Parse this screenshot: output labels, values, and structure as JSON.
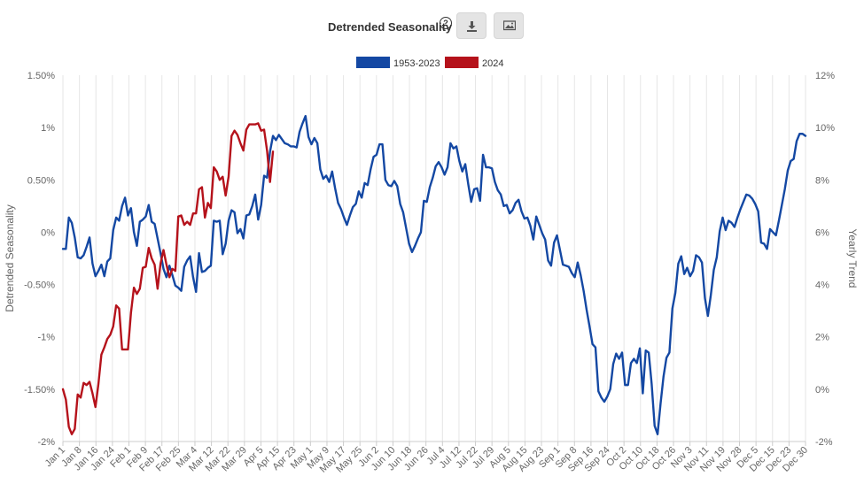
{
  "header": {
    "title": "Detrended Seasonality",
    "help_symbol": "?",
    "download_icon": "download-icon",
    "image_icon": "image-icon"
  },
  "chart_data": {
    "type": "line",
    "title": "Detrended Seasonality",
    "ylabel": "Detrended Seasonality",
    "y2label": "Yearly Trend",
    "ylim": [
      -2,
      1.5
    ],
    "y2lim": [
      -2,
      12
    ],
    "yticks": [
      "1.50%",
      "1%",
      "0.50%",
      "0%",
      "-0.50%",
      "-1%",
      "-1.50%",
      "-2%"
    ],
    "y2ticks": [
      "12%",
      "10%",
      "8%",
      "6%",
      "4%",
      "2%",
      "0%",
      "-2%"
    ],
    "categories": [
      "Jan 1",
      "Jan 8",
      "Jan 16",
      "Jan 24",
      "Feb 1",
      "Feb 9",
      "Feb 17",
      "Feb 25",
      "Mar 4",
      "Mar 12",
      "Mar 22",
      "Mar 29",
      "Apr 5",
      "Apr 15",
      "Apr 23",
      "May 1",
      "May 9",
      "May 17",
      "May 25",
      "Jun 2",
      "Jun 10",
      "Jun 18",
      "Jun 26",
      "Jul 4",
      "Jul 12",
      "Jul 22",
      "Jul 29",
      "Aug 5",
      "Aug 15",
      "Aug 23",
      "Sep 1",
      "Sep 8",
      "Sep 16",
      "Sep 24",
      "Oct 2",
      "Oct 10",
      "Oct 18",
      "Oct 26",
      "Nov 3",
      "Nov 11",
      "Nov 19",
      "Nov 28",
      "Dec 5",
      "Dec 15",
      "Dec 23",
      "Dec 30"
    ],
    "legend": {
      "position": "top-center"
    },
    "series": [
      {
        "name": "1953-2023",
        "color": "#1448a3",
        "x": [
          0,
          1,
          2,
          3,
          4,
          5,
          6,
          7,
          8,
          9,
          10,
          11,
          12,
          13,
          14,
          15,
          16,
          17,
          18,
          19,
          20,
          21,
          22,
          23,
          24,
          25,
          26,
          27,
          28,
          29,
          30,
          31,
          32,
          33,
          34,
          35,
          36,
          37,
          38,
          39,
          40,
          41,
          42,
          43,
          44,
          45,
          46,
          47,
          48,
          49,
          50,
          51,
          52,
          53,
          54,
          55,
          56,
          57,
          58,
          59,
          60,
          61,
          62,
          63,
          64,
          65,
          66,
          67,
          68,
          69,
          70,
          71,
          72,
          73,
          74,
          75,
          76,
          77,
          78,
          79,
          80,
          81,
          82,
          83,
          84,
          85,
          86,
          87,
          88,
          89,
          90,
          91,
          92,
          93,
          94,
          95,
          96,
          97,
          98,
          99,
          100,
          101,
          102,
          103,
          104,
          105,
          106,
          107,
          108,
          109,
          110,
          111,
          112,
          113,
          114,
          115,
          116,
          117,
          118,
          119,
          120,
          121,
          122,
          123,
          124,
          125,
          126,
          127,
          128,
          129,
          130,
          131,
          132,
          133,
          134,
          135,
          136,
          137,
          138,
          139,
          140,
          141,
          142,
          143,
          144,
          145,
          146,
          147,
          148,
          149,
          150,
          151,
          152,
          153,
          154,
          155,
          156,
          157,
          158,
          159,
          160,
          161,
          162,
          163,
          164,
          165,
          166,
          167,
          168,
          169,
          170,
          171,
          172,
          173,
          174,
          175,
          176,
          177,
          178,
          179,
          180,
          181,
          182,
          183,
          184,
          185,
          186,
          187,
          188,
          189,
          190,
          191,
          192,
          193,
          194,
          195,
          196,
          197,
          198,
          199,
          200,
          201,
          202,
          203,
          204,
          205,
          206,
          207,
          208,
          209,
          210,
          211,
          212,
          213,
          214,
          215,
          216,
          217,
          218,
          219,
          220,
          221,
          222,
          223,
          224,
          225,
          226,
          227,
          228,
          229,
          230,
          231,
          232,
          233,
          234,
          235,
          236,
          237,
          238,
          239,
          240,
          241,
          242,
          243,
          244,
          245,
          246,
          247,
          248,
          249,
          250,
          251
        ],
        "values": [
          -0.16,
          -0.16,
          0.14,
          0.09,
          -0.05,
          -0.24,
          -0.25,
          -0.22,
          -0.14,
          -0.05,
          -0.3,
          -0.42,
          -0.37,
          -0.31,
          -0.42,
          -0.28,
          -0.25,
          0.02,
          0.14,
          0.11,
          0.25,
          0.33,
          0.16,
          0.23,
          0.0,
          -0.13,
          0.1,
          0.12,
          0.15,
          0.26,
          0.1,
          0.08,
          -0.06,
          -0.2,
          -0.35,
          -0.43,
          -0.32,
          -0.41,
          -0.51,
          -0.53,
          -0.56,
          -0.33,
          -0.27,
          -0.23,
          -0.43,
          -0.57,
          -0.2,
          -0.38,
          -0.37,
          -0.34,
          -0.32,
          0.11,
          0.1,
          0.11,
          -0.21,
          -0.11,
          0.11,
          0.21,
          0.19,
          -0.01,
          0.03,
          -0.06,
          0.16,
          0.17,
          0.25,
          0.36,
          0.12,
          0.26,
          0.54,
          0.52,
          0.77,
          0.92,
          0.88,
          0.93,
          0.89,
          0.85,
          0.84,
          0.82,
          0.82,
          0.81,
          0.96,
          1.04,
          1.11,
          0.91,
          0.84,
          0.9,
          0.85,
          0.6,
          0.51,
          0.54,
          0.48,
          0.58,
          0.42,
          0.28,
          0.22,
          0.14,
          0.07,
          0.16,
          0.24,
          0.27,
          0.39,
          0.33,
          0.47,
          0.45,
          0.6,
          0.72,
          0.74,
          0.84,
          0.84,
          0.5,
          0.45,
          0.44,
          0.49,
          0.44,
          0.27,
          0.19,
          0.04,
          -0.11,
          -0.19,
          -0.13,
          -0.06,
          0.0,
          0.3,
          0.29,
          0.43,
          0.52,
          0.63,
          0.67,
          0.62,
          0.55,
          0.62,
          0.85,
          0.8,
          0.82,
          0.68,
          0.58,
          0.65,
          0.46,
          0.29,
          0.41,
          0.42,
          0.3,
          0.74,
          0.62,
          0.62,
          0.61,
          0.48,
          0.4,
          0.36,
          0.25,
          0.26,
          0.18,
          0.21,
          0.28,
          0.31,
          0.2,
          0.13,
          0.14,
          0.06,
          -0.07,
          0.15,
          0.07,
          -0.01,
          -0.07,
          -0.27,
          -0.32,
          -0.1,
          -0.03,
          -0.17,
          -0.31,
          -0.32,
          -0.33,
          -0.39,
          -0.43,
          -0.29,
          -0.41,
          -0.56,
          -0.74,
          -0.9,
          -1.07,
          -1.1,
          -1.52,
          -1.58,
          -1.62,
          -1.57,
          -1.5,
          -1.26,
          -1.16,
          -1.21,
          -1.15,
          -1.46,
          -1.46,
          -1.25,
          -1.21,
          -1.25,
          -1.11,
          -1.54,
          -1.13,
          -1.15,
          -1.45,
          -1.85,
          -1.93,
          -1.64,
          -1.38,
          -1.2,
          -1.15,
          -0.73,
          -0.58,
          -0.3,
          -0.23,
          -0.4,
          -0.34,
          -0.42,
          -0.37,
          -0.22,
          -0.24,
          -0.29,
          -0.63,
          -0.8,
          -0.6,
          -0.36,
          -0.24,
          0.01,
          0.14,
          0.02,
          0.11,
          0.09,
          0.05,
          0.14,
          0.22,
          0.29,
          0.36,
          0.35,
          0.32,
          0.27,
          0.2,
          -0.1,
          -0.11,
          -0.16,
          0.03,
          0.0,
          -0.03,
          0.11,
          0.26,
          0.41,
          0.59,
          0.68,
          0.7,
          0.87,
          0.94,
          0.94,
          0.92
        ]
      },
      {
        "name": "2024",
        "color": "#b5121b",
        "x": [
          0,
          1,
          2,
          3,
          4,
          5,
          6,
          7,
          8,
          9,
          10,
          11,
          12,
          13,
          14,
          15,
          16,
          17,
          18,
          19,
          20,
          21,
          22,
          23,
          24,
          25,
          26,
          27,
          28,
          29,
          30,
          31,
          32,
          33,
          34,
          35,
          36,
          37,
          38,
          39,
          40,
          41,
          42,
          43,
          44,
          45,
          46,
          47,
          48,
          49,
          50,
          51,
          52,
          53,
          54,
          55,
          56,
          57,
          58,
          59,
          60,
          61,
          62,
          63,
          64,
          65,
          66,
          67,
          68,
          69,
          70,
          71
        ],
        "values": [
          -1.5,
          -1.6,
          -1.86,
          -1.93,
          -1.88,
          -1.55,
          -1.58,
          -1.44,
          -1.46,
          -1.43,
          -1.54,
          -1.67,
          -1.45,
          -1.17,
          -1.1,
          -1.02,
          -0.98,
          -0.9,
          -0.7,
          -0.73,
          -1.12,
          -1.12,
          -1.12,
          -0.77,
          -0.53,
          -0.59,
          -0.54,
          -0.34,
          -0.33,
          -0.15,
          -0.25,
          -0.31,
          -0.54,
          -0.3,
          -0.17,
          -0.31,
          -0.43,
          -0.35,
          -0.37,
          0.15,
          0.16,
          0.07,
          0.1,
          0.07,
          0.18,
          0.18,
          0.41,
          0.43,
          0.14,
          0.28,
          0.23,
          0.62,
          0.58,
          0.5,
          0.53,
          0.35,
          0.53,
          0.92,
          0.97,
          0.93,
          0.85,
          0.78,
          0.98,
          1.03,
          1.03,
          1.03,
          1.04,
          0.97,
          0.98,
          0.78,
          0.48,
          0.77
        ]
      }
    ]
  }
}
